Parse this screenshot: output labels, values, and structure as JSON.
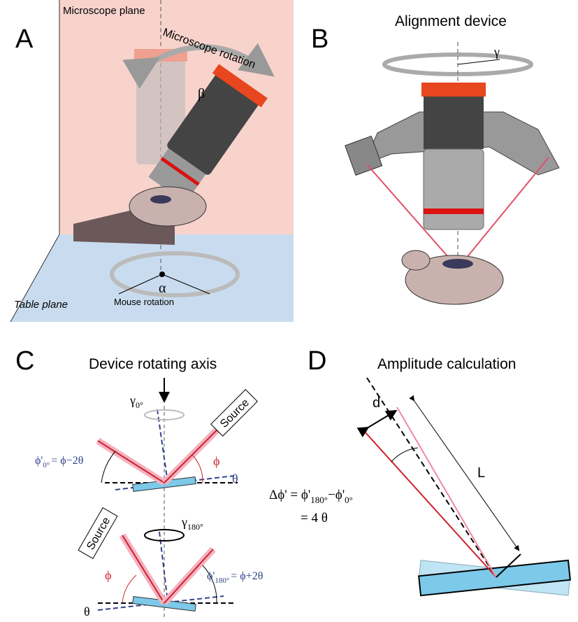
{
  "panels": {
    "a": {
      "letter": "A",
      "plane_label": "Microscope plane",
      "rotation_label": "Microscope rotation",
      "beta": "β",
      "alpha": "α",
      "mouse_rotation": "Mouse rotation",
      "table_label": "Table plane"
    },
    "b": {
      "letter": "B",
      "title": "Alignment device",
      "gamma": "γ"
    },
    "c": {
      "letter": "C",
      "title": "Device rotating axis",
      "top": {
        "gamma": "γ",
        "gamma_sub": "0°",
        "source": "Source",
        "phi_prime": "ϕ'",
        "phi_prime_sub": "0°",
        "phi_prime_eq": "= ϕ−2θ",
        "phi": "ϕ",
        "theta": "θ"
      },
      "bottom": {
        "gamma": "γ",
        "gamma_sub": "180°",
        "source": "Source",
        "phi": "ϕ",
        "phi_prime": "ϕ'",
        "phi_prime_sub": "180°",
        "phi_prime_eq": "= ϕ+2θ",
        "theta": "θ"
      }
    },
    "d": {
      "letter": "D",
      "title": "Amplitude calculation",
      "d_label": "d",
      "l_label": "L",
      "delta_lhs": "Δϕ' = ϕ'",
      "delta_sub1": "180°",
      "delta_mid": "−ϕ'",
      "delta_sub2": "0°",
      "delta_rhs": "= 4 θ"
    }
  }
}
